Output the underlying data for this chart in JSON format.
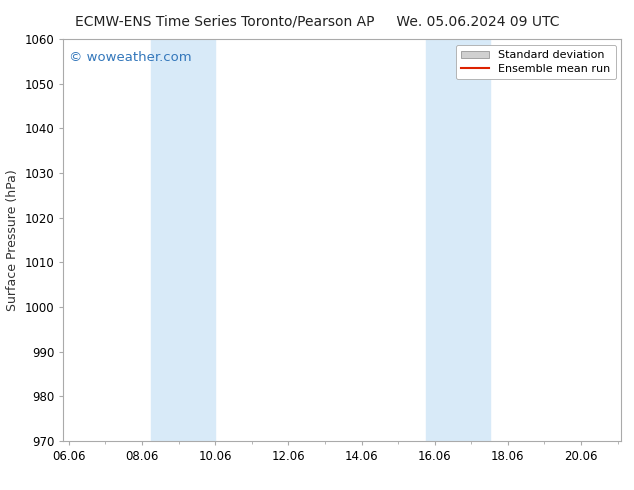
{
  "title": "ECMW-ENS Time Series Toronto/Pearson AP     We. 05.06.2024 09 UTC",
  "ylabel": "Surface Pressure (hPa)",
  "ylim": [
    970,
    1060
  ],
  "yticks": [
    970,
    980,
    990,
    1000,
    1010,
    1020,
    1030,
    1040,
    1050,
    1060
  ],
  "xlim_start": 5.85,
  "xlim_end": 21.1,
  "xtick_labels": [
    "06.06",
    "08.06",
    "10.06",
    "12.06",
    "14.06",
    "16.06",
    "18.06",
    "20.06"
  ],
  "xtick_positions": [
    6.0,
    8.0,
    10.0,
    12.0,
    14.0,
    16.0,
    18.0,
    20.0
  ],
  "shaded_bands": [
    {
      "x_start": 8.25,
      "x_end": 10.0
    },
    {
      "x_start": 15.75,
      "x_end": 17.5
    }
  ],
  "shaded_color": "#d8eaf8",
  "background_color": "#ffffff",
  "watermark_text": "© woweather.com",
  "watermark_color": "#3377bb",
  "legend_items": [
    {
      "label": "Standard deviation",
      "color": "#d0d0d0",
      "type": "patch"
    },
    {
      "label": "Ensemble mean run",
      "color": "#dd2200",
      "type": "line"
    }
  ],
  "title_fontsize": 10,
  "axis_label_fontsize": 9,
  "tick_fontsize": 8.5,
  "legend_fontsize": 8,
  "watermark_fontsize": 9.5
}
